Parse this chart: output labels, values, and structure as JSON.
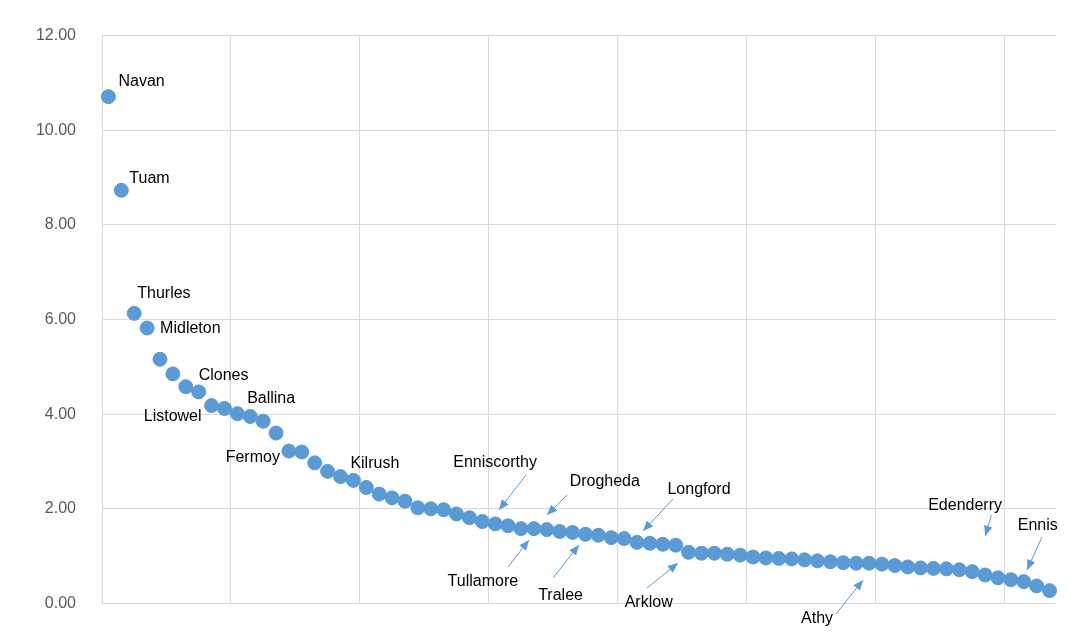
{
  "chart_data": {
    "type": "scatter",
    "color": "#5b9bd5",
    "marker": "circle",
    "grid": true,
    "legend": false,
    "tick_labels": "y",
    "categories": [
      null,
      null,
      null,
      null,
      null,
      null,
      null,
      null,
      null,
      null,
      null,
      null,
      null,
      null,
      null,
      null,
      null,
      null,
      null,
      null,
      null,
      null,
      null,
      null,
      null,
      null,
      null,
      null,
      null,
      null,
      null,
      null,
      null,
      null,
      null,
      null,
      null,
      null,
      null,
      null,
      null,
      null,
      null,
      null,
      null,
      null,
      null,
      null,
      null,
      null,
      null,
      null,
      null,
      null,
      null,
      null,
      null,
      null,
      null,
      null,
      null,
      null,
      null,
      null,
      null,
      null,
      null,
      null,
      null,
      null,
      null,
      null,
      null,
      null
    ],
    "values": [
      10.71,
      8.73,
      6.13,
      5.82,
      5.16,
      4.85,
      4.58,
      4.47,
      4.18,
      4.12,
      4.01,
      3.95,
      3.85,
      3.6,
      3.22,
      3.2,
      2.97,
      2.79,
      2.68,
      2.6,
      2.45,
      2.31,
      2.23,
      2.16,
      2.02,
      2.0,
      1.98,
      1.89,
      1.81,
      1.73,
      1.68,
      1.64,
      1.58,
      1.58,
      1.56,
      1.52,
      1.5,
      1.46,
      1.44,
      1.39,
      1.37,
      1.29,
      1.27,
      1.25,
      1.23,
      1.08,
      1.06,
      1.06,
      1.04,
      1.02,
      0.98,
      0.96,
      0.95,
      0.94,
      0.92,
      0.9,
      0.88,
      0.86,
      0.85,
      0.85,
      0.83,
      0.8,
      0.77,
      0.75,
      0.74,
      0.73,
      0.71,
      0.67,
      0.6,
      0.54,
      0.5,
      0.46,
      0.37,
      0.27
    ],
    "ylim": [
      0,
      12
    ],
    "yticks": [
      {
        "value": 0,
        "label": "0.00"
      },
      {
        "value": 2,
        "label": "2.00"
      },
      {
        "value": 4,
        "label": "4.00"
      },
      {
        "value": 6,
        "label": "6.00"
      },
      {
        "value": 8,
        "label": "8.00"
      },
      {
        "value": 10,
        "label": "10.00"
      },
      {
        "value": 12,
        "label": "12.00"
      }
    ],
    "annotations": [
      "Navan",
      "Tuam",
      "Thurles",
      "Midleton",
      "Clones",
      "Listowel",
      "Ballina",
      "Fermoy",
      "Kilrush",
      "Enniscorthy",
      "Tullamore",
      "Drogheda",
      "Tralee",
      "Longford",
      "Arklow",
      "Athy",
      "Edenderry",
      "Ennis"
    ]
  }
}
